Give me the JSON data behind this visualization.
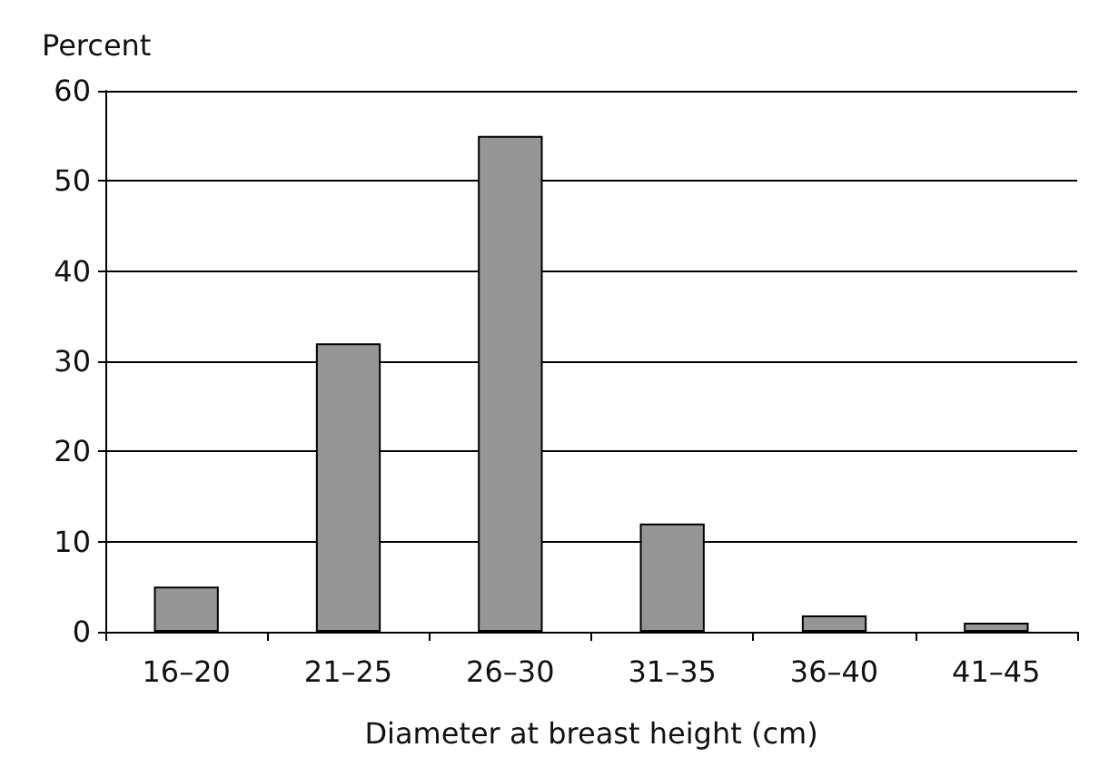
{
  "chart_data": {
    "type": "bar",
    "xlabel": "Diameter at breast height (cm)",
    "ylabel": "Percent",
    "categories": [
      "16–20",
      "21–25",
      "26–30",
      "31–35",
      "36–40",
      "41–45"
    ],
    "values": [
      5,
      32,
      55,
      12,
      1.8,
      1
    ],
    "color": "#969696",
    "ylim": [
      0,
      60
    ],
    "yticks": [
      0,
      10,
      20,
      30,
      40,
      50,
      60
    ],
    "grid": "y"
  }
}
